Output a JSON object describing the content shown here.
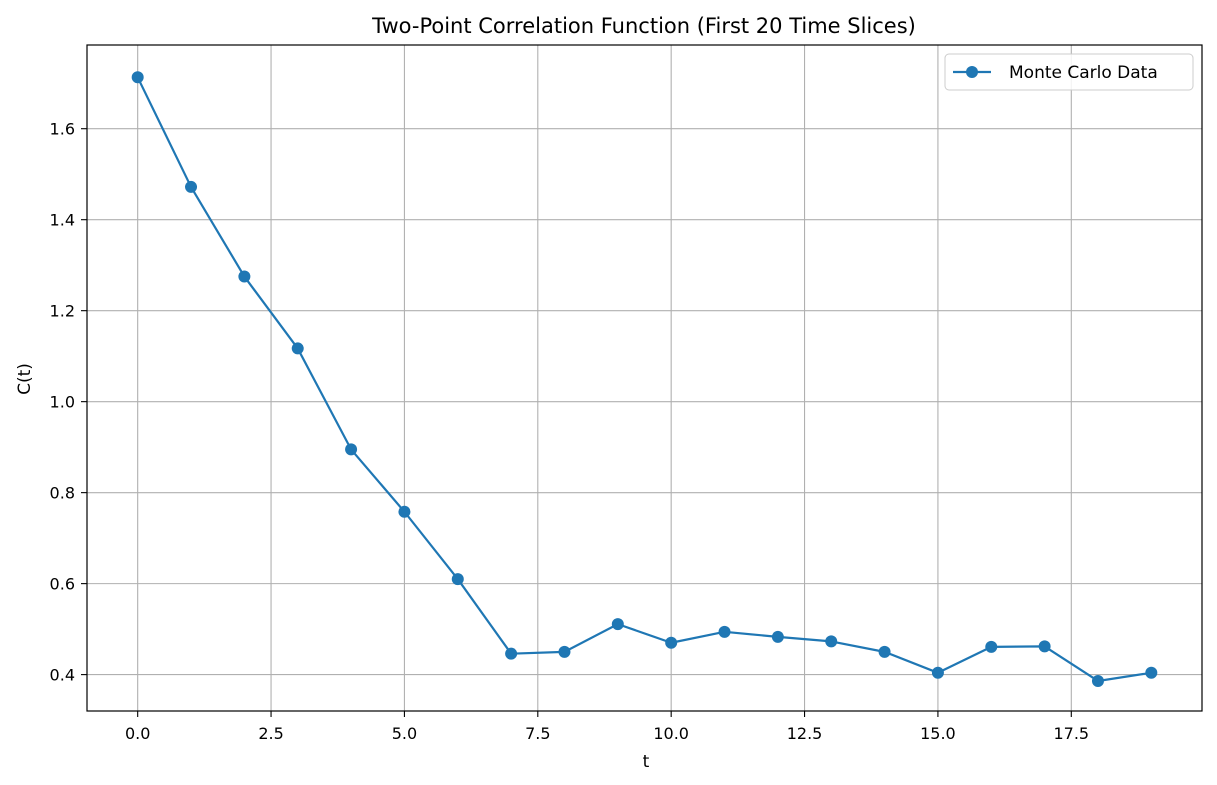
{
  "chart_data": {
    "type": "line",
    "title": "Two-Point Correlation Function (First 20 Time Slices)",
    "xlabel": "t",
    "ylabel": "C(t)",
    "xlim": [
      -0.95,
      19.95
    ],
    "ylim": [
      0.32,
      1.784
    ],
    "x_ticks": [
      0,
      2.5,
      5,
      7.5,
      10,
      12.5,
      15,
      17.5
    ],
    "x_tick_labels": [
      "0.0",
      "2.5",
      "5.0",
      "7.5",
      "10.0",
      "12.5",
      "15.0",
      "17.5"
    ],
    "y_ticks": [
      0.4,
      0.6,
      0.8,
      1.0,
      1.2,
      1.4,
      1.6
    ],
    "y_tick_labels": [
      "0.4",
      "0.6",
      "0.8",
      "1.0",
      "1.2",
      "1.4",
      "1.6"
    ],
    "grid": true,
    "legend_position": "top-right",
    "series": [
      {
        "name": "Monte Carlo Data",
        "color": "#1f77b4",
        "marker": "circle",
        "x": [
          0,
          1,
          2,
          3,
          4,
          5,
          6,
          7,
          8,
          9,
          10,
          11,
          12,
          13,
          14,
          15,
          16,
          17,
          18,
          19
        ],
        "y": [
          1.713,
          1.472,
          1.275,
          1.117,
          0.895,
          0.758,
          0.61,
          0.446,
          0.45,
          0.511,
          0.47,
          0.494,
          0.483,
          0.473,
          0.45,
          0.404,
          0.461,
          0.462,
          0.386,
          0.404
        ]
      }
    ]
  }
}
